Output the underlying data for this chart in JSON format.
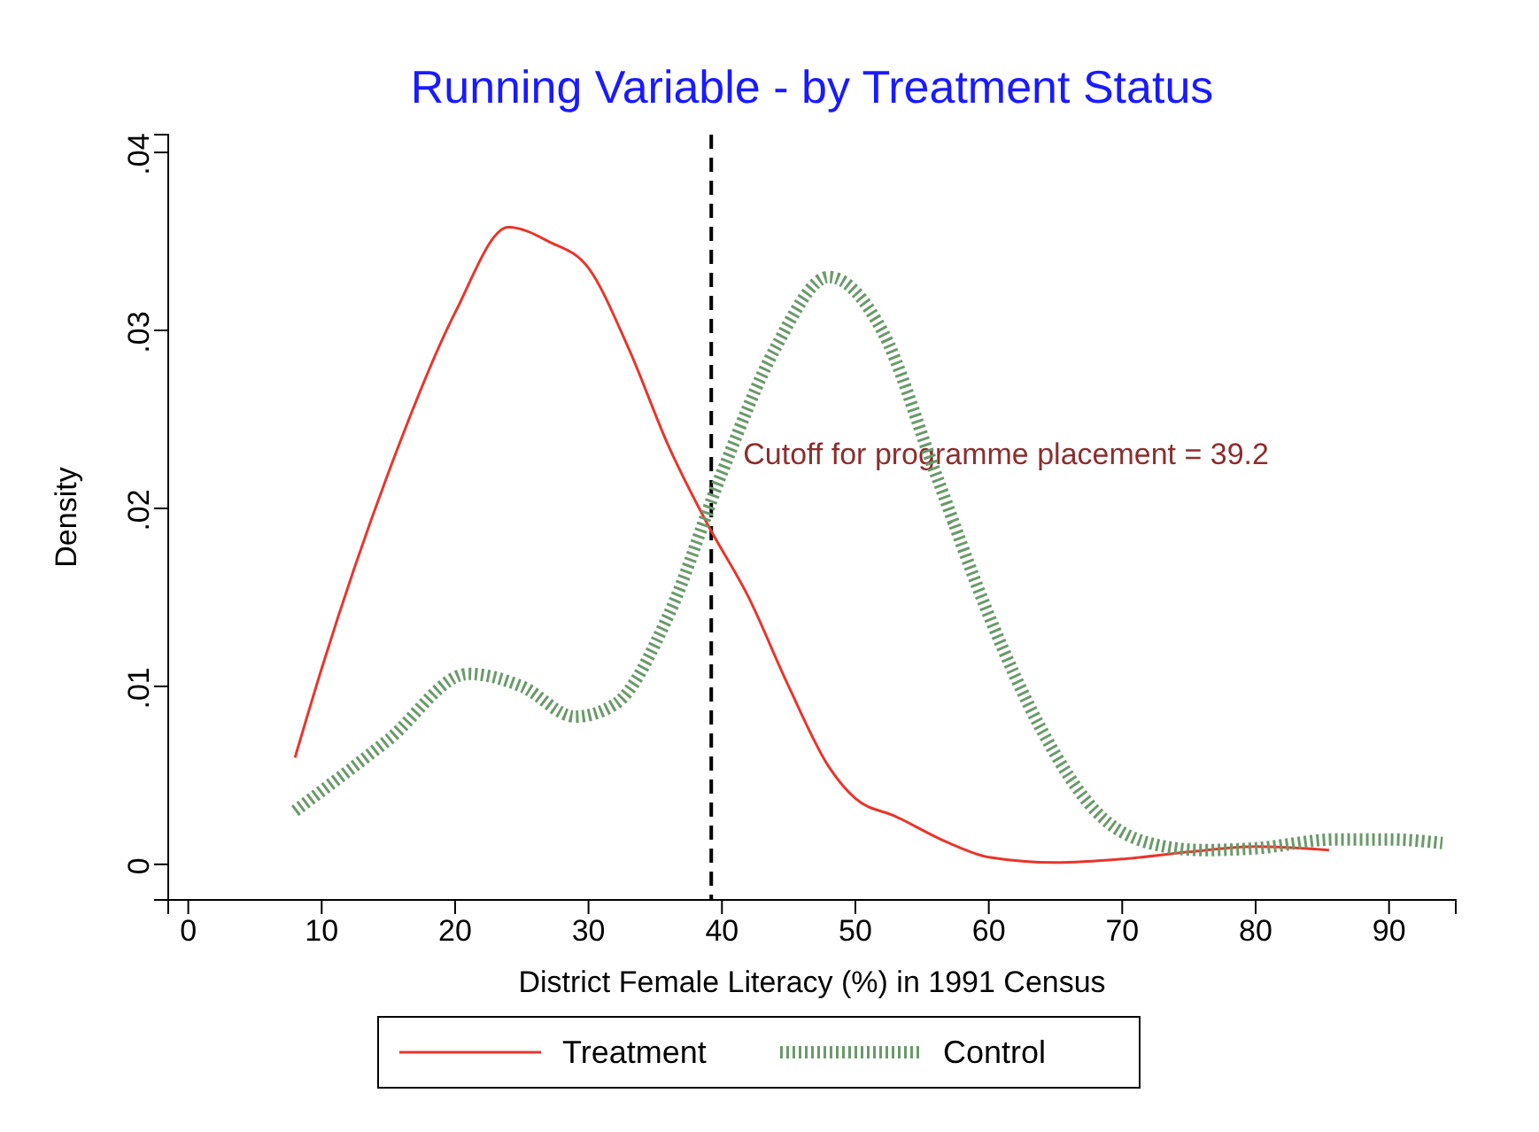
{
  "chart_data": {
    "type": "line",
    "title": "Running Variable - by Treatment Status",
    "xlabel": "District Female Literacy (%) in 1991 Census",
    "ylabel": "Density",
    "xlim": [
      -1.5,
      95
    ],
    "xticks": [
      0,
      10,
      20,
      30,
      40,
      50,
      60,
      70,
      80,
      90
    ],
    "ylim": [
      -0.002,
      0.041
    ],
    "yticks": [
      {
        "value": 0,
        "label": "0"
      },
      {
        "value": 0.01,
        "label": ".01"
      },
      {
        "value": 0.02,
        "label": ".02"
      },
      {
        "value": 0.03,
        "label": ".03"
      },
      {
        "value": 0.04,
        "label": ".04"
      }
    ],
    "grid": false,
    "legend": "bottom",
    "ref_lines": [
      {
        "axis": "x",
        "value": 39.2,
        "label": "Cutoff for programme placement = 39.2",
        "color": "#000000",
        "line_style": "dashed"
      }
    ],
    "series": [
      {
        "name": "Treatment",
        "color": "#e8362c",
        "line_style": "solid",
        "x": [
          8,
          10,
          15,
          20,
          24,
          27,
          30,
          33,
          36,
          39,
          42,
          45,
          48,
          50,
          53,
          57,
          60,
          65,
          70,
          75,
          80,
          85.5
        ],
        "values": [
          0.006,
          0.011,
          0.022,
          0.031,
          0.0358,
          0.035,
          0.0335,
          0.029,
          0.0235,
          0.019,
          0.015,
          0.01,
          0.0055,
          0.0037,
          0.0027,
          0.0012,
          0.0004,
          0.0001,
          0.0003,
          0.0007,
          0.001,
          0.0008
        ]
      },
      {
        "name": "Control",
        "color": "#6a9a6a",
        "line_style": "dotted",
        "x": [
          8,
          15,
          21,
          25,
          29,
          32,
          36,
          40,
          44,
          48,
          52,
          56,
          60,
          64,
          68,
          72,
          76,
          80,
          86,
          90,
          94
        ],
        "values": [
          0.003,
          0.007,
          0.0107,
          0.01,
          0.0083,
          0.009,
          0.014,
          0.022,
          0.029,
          0.033,
          0.03,
          0.022,
          0.014,
          0.0075,
          0.003,
          0.0012,
          0.0008,
          0.0009,
          0.0014,
          0.0014,
          0.0012
        ]
      }
    ]
  }
}
